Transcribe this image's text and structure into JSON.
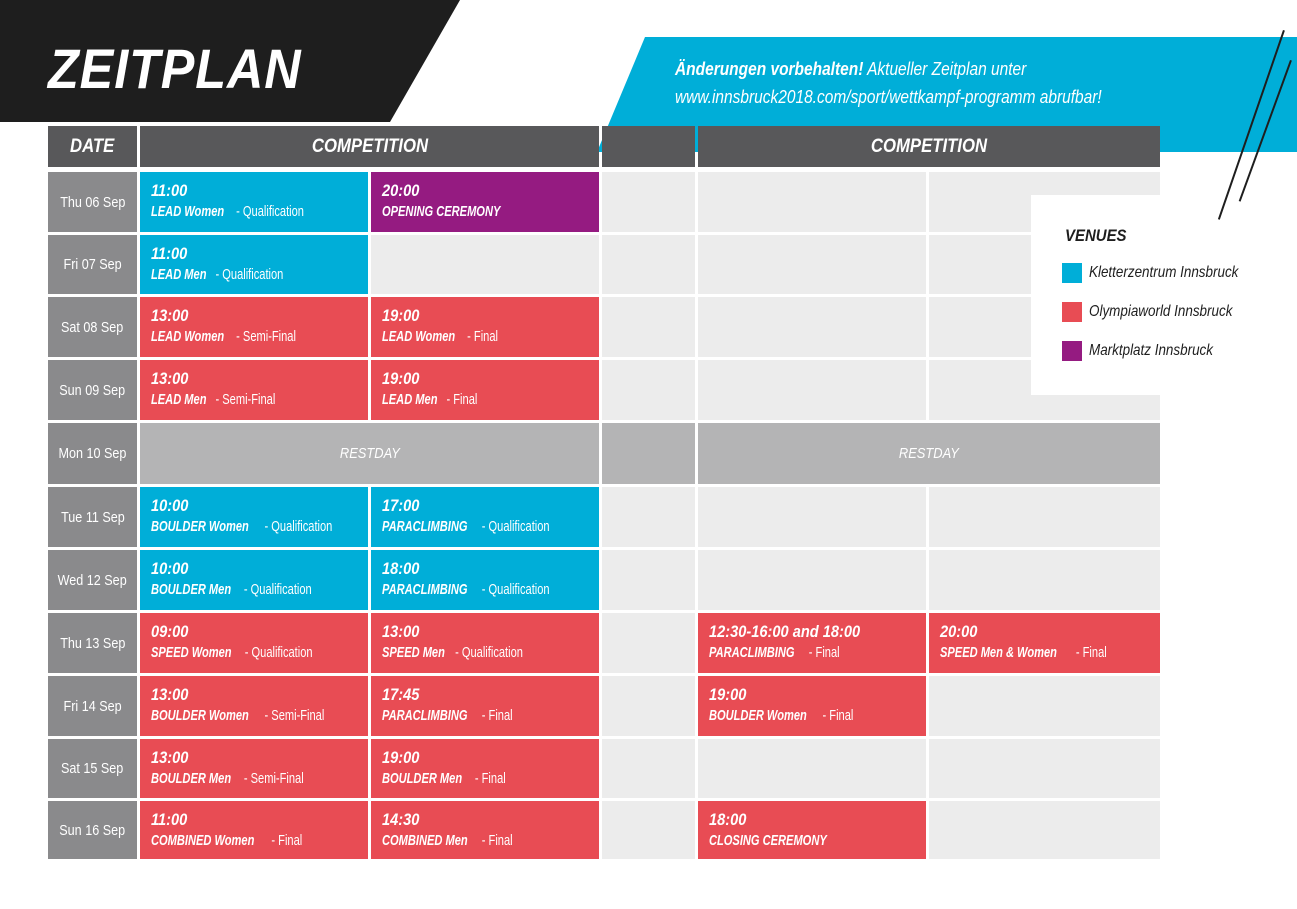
{
  "title": "ZEITPLAN",
  "notice": {
    "bold": "Änderungen vorbehalten!",
    "line1_rest": " Aktueller Zeitplan unter",
    "url": "www.innsbruck2018.com/sport/wettkampf-programm",
    "line2_rest": " abrufbar!"
  },
  "headers": {
    "date": "DATE",
    "competition_1": "COMPETITION",
    "competition_2": "COMPETITION"
  },
  "dates": [
    "Thu 06 Sep",
    "Fri 07 Sep",
    "Sat 08 Sep",
    "Sun 09 Sep",
    "Mon 10 Sep",
    "Tue 11 Sep",
    "Wed 12 Sep",
    "Thu 13 Sep",
    "Fri 14 Sep",
    "Sat 15 Sep",
    "Sun 16 Sep"
  ],
  "restday": "RESTDAY",
  "events": {
    "thu06_1": {
      "time": "11:00",
      "name": "LEAD Women",
      "detail": " - Qualification",
      "venue": "Kletterzentrum Innsbruck"
    },
    "thu06_2": {
      "time": "20:00",
      "name": "OPENING CEREMONY",
      "detail": "",
      "venue": "Marktplatz Innsbruck"
    },
    "fri07_1": {
      "time": "11:00",
      "name": "LEAD Men",
      "detail": " - Qualification",
      "venue": "Kletterzentrum Innsbruck"
    },
    "sat08_1": {
      "time": "13:00",
      "name": "LEAD Women",
      "detail": " - Semi-Final",
      "venue": "Olympiaworld Innsbruck"
    },
    "sat08_2": {
      "time": "19:00",
      "name": "LEAD Women",
      "detail": " - Final",
      "venue": "Olympiaworld Innsbruck"
    },
    "sun09_1": {
      "time": "13:00",
      "name": "LEAD Men",
      "detail": " - Semi-Final",
      "venue": "Olympiaworld Innsbruck"
    },
    "sun09_2": {
      "time": "19:00",
      "name": "LEAD Men",
      "detail": " - Final",
      "venue": "Olympiaworld Innsbruck"
    },
    "tue11_1": {
      "time": "10:00",
      "name": "BOULDER Women",
      "detail": " - Qualification",
      "venue": "Kletterzentrum Innsbruck"
    },
    "tue11_2": {
      "time": "17:00",
      "name": "PARACLIMBING",
      "detail": " - Qualification",
      "venue": "Kletterzentrum Innsbruck"
    },
    "wed12_1": {
      "time": "10:00",
      "name": "BOULDER Men",
      "detail": " - Qualification",
      "venue": "Kletterzentrum Innsbruck"
    },
    "wed12_2": {
      "time": "18:00",
      "name": "PARACLIMBING",
      "detail": " - Qualification",
      "venue": "Kletterzentrum Innsbruck"
    },
    "thu13_1": {
      "time": "09:00",
      "name": "SPEED Women",
      "detail": " - Qualification",
      "venue": "Olympiaworld Innsbruck"
    },
    "thu13_2": {
      "time": "13:00",
      "name": "SPEED Men",
      "detail": " - Qualification",
      "venue": "Olympiaworld Innsbruck"
    },
    "thu13_3": {
      "time": "12:30-16:00 and 18:00",
      "name": "PARACLIMBING",
      "detail": " - Final",
      "venue": "Olympiaworld Innsbruck"
    },
    "thu13_4": {
      "time": "20:00",
      "name": "SPEED Men & Women",
      "detail": " - Final",
      "venue": "Olympiaworld Innsbruck"
    },
    "fri14_1": {
      "time": "13:00",
      "name": "BOULDER Women",
      "detail": " - Semi-Final",
      "venue": "Olympiaworld Innsbruck"
    },
    "fri14_2": {
      "time": "17:45",
      "name": "PARACLIMBING",
      "detail": " - Final",
      "venue": "Olympiaworld Innsbruck"
    },
    "fri14_3": {
      "time": "19:00",
      "name": "BOULDER Women",
      "detail": " - Final",
      "venue": "Olympiaworld Innsbruck"
    },
    "sat15_1": {
      "time": "13:00",
      "name": "BOULDER Men",
      "detail": " - Semi-Final",
      "venue": "Olympiaworld Innsbruck"
    },
    "sat15_2": {
      "time": "19:00",
      "name": "BOULDER Men",
      "detail": " - Final",
      "venue": "Olympiaworld Innsbruck"
    },
    "sun16_1": {
      "time": "11:00",
      "name": "COMBINED Women",
      "detail": " - Final",
      "venue": "Olympiaworld Innsbruck"
    },
    "sun16_2": {
      "time": "14:30",
      "name": "COMBINED Men",
      "detail": " - Final",
      "venue": "Olympiaworld Innsbruck"
    },
    "sun16_3": {
      "time": "18:00",
      "name": "CLOSING CEREMONY",
      "detail": "",
      "venue": "Olympiaworld Innsbruck"
    }
  },
  "legend": {
    "title": "VENUES",
    "items": [
      {
        "label": "Kletterzentrum Innsbruck",
        "color": "#00aed8"
      },
      {
        "label": "Olympiaworld Innsbruck",
        "color": "#e84c54"
      },
      {
        "label": "Marktplatz Innsbruck",
        "color": "#951b81"
      }
    ]
  }
}
